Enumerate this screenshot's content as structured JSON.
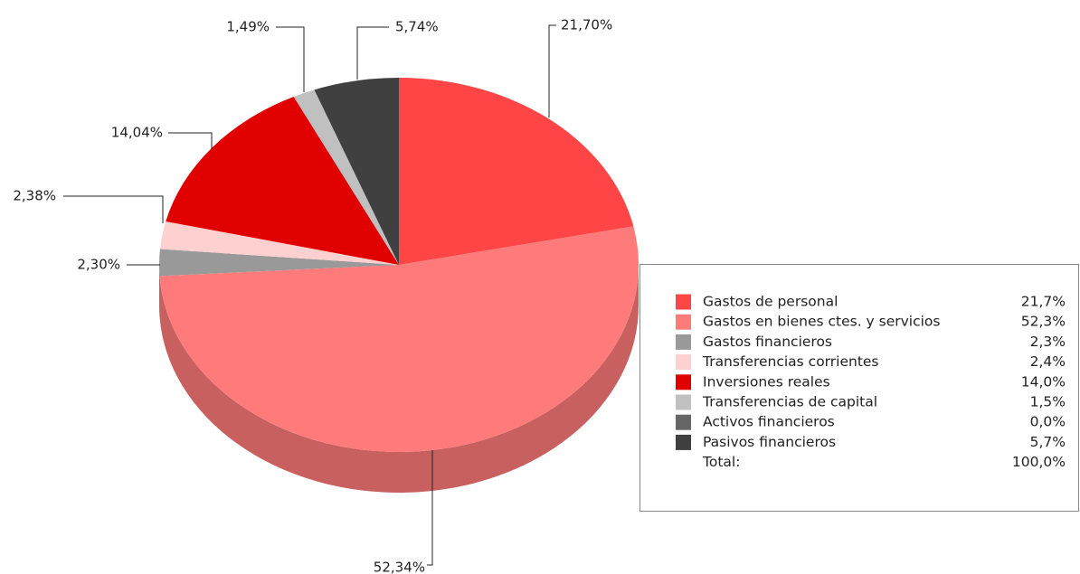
{
  "chart_data": {
    "type": "pie",
    "categories": [
      "Gastos de personal",
      "Gastos en bienes ctes. y servicios",
      "Gastos financieros",
      "Transferencias corrientes",
      "Inversiones reales",
      "Transferencias de capital",
      "Activos financieros",
      "Pasivos financieros"
    ],
    "values": [
      21.7,
      52.34,
      2.3,
      2.38,
      14.04,
      1.49,
      0.0,
      5.74
    ],
    "value_labels": [
      "21,70%",
      "52,34%",
      "2,30%",
      "2,38%",
      "14,04%",
      "1,49%",
      null,
      "5,74%"
    ],
    "legend_value_labels": [
      "21,7%",
      "52,3%",
      "2,3%",
      "2,4%",
      "14,0%",
      "1,5%",
      "0,0%",
      "5,7%"
    ],
    "colors": [
      "#ff4545",
      "#ff7b7b",
      "#999999",
      "#ffd0d0",
      "#e00000",
      "#c0c0c0",
      "#666666",
      "#404040"
    ],
    "side_colors": [
      "#c83434",
      "#c86060",
      "#777777",
      "#c8a0a0",
      "#a00000",
      "#999999",
      "#4a4a4a",
      "#2c2c2c"
    ],
    "total_label": "Total:",
    "total_value_label": "100,0%",
    "legend": "right"
  }
}
